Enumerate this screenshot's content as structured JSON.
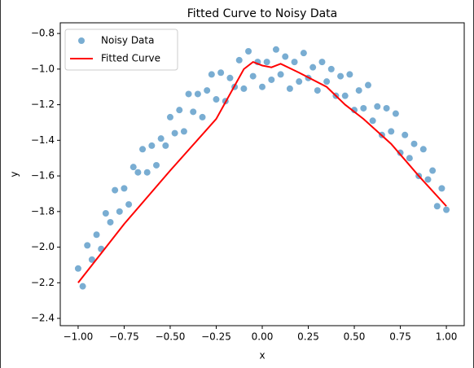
{
  "chart_data": {
    "type": "scatter_line",
    "title": "Fitted Curve to Noisy Data",
    "xlabel": "x",
    "ylabel": "y",
    "xlim": [
      -1.097,
      1.097
    ],
    "ylim": [
      -2.441,
      -0.74
    ],
    "xticks": [
      {
        "value": -1.0,
        "label": "−1.00"
      },
      {
        "value": -0.75,
        "label": "−0.75"
      },
      {
        "value": -0.5,
        "label": "−0.50"
      },
      {
        "value": -0.25,
        "label": "−0.25"
      },
      {
        "value": 0,
        "label": "0.00"
      },
      {
        "value": 0.25,
        "label": "0.25"
      },
      {
        "value": 0.5,
        "label": "0.50"
      },
      {
        "value": 0.75,
        "label": "0.75"
      },
      {
        "value": 1.0,
        "label": "1.00"
      }
    ],
    "yticks": [
      {
        "value": -2.4,
        "label": "−2.4"
      },
      {
        "value": -2.2,
        "label": "−2.2"
      },
      {
        "value": -2.0,
        "label": "−2.0"
      },
      {
        "value": -1.8,
        "label": "−1.8"
      },
      {
        "value": -1.6,
        "label": "−1.6"
      },
      {
        "value": -1.4,
        "label": "−1.4"
      },
      {
        "value": -1.2,
        "label": "−1.2"
      },
      {
        "value": -1.0,
        "label": "−1.0"
      },
      {
        "value": -0.8,
        "label": "−0.8"
      }
    ],
    "legend": "upper left",
    "series": [
      {
        "name": "Noisy Data",
        "kind": "scatter",
        "color": "#1f77b4",
        "x": [
          -1,
          -0.975,
          -0.95,
          -0.925,
          -0.9,
          -0.875,
          -0.85,
          -0.825,
          -0.8,
          -0.775,
          -0.75,
          -0.725,
          -0.7,
          -0.675,
          -0.65,
          -0.625,
          -0.6,
          -0.575,
          -0.55,
          -0.525,
          -0.5,
          -0.475,
          -0.45,
          -0.425,
          -0.4,
          -0.375,
          -0.35,
          -0.325,
          -0.3,
          -0.275,
          -0.25,
          -0.225,
          -0.2,
          -0.175,
          -0.15,
          -0.125,
          -0.1,
          -0.075,
          -0.05,
          -0.025,
          0,
          0.025,
          0.05,
          0.075,
          0.1,
          0.125,
          0.15,
          0.175,
          0.2,
          0.225,
          0.25,
          0.275,
          0.3,
          0.325,
          0.35,
          0.375,
          0.4,
          0.425,
          0.45,
          0.475,
          0.5,
          0.525,
          0.55,
          0.575,
          0.6,
          0.625,
          0.65,
          0.675,
          0.7,
          0.725,
          0.75,
          0.775,
          0.8,
          0.825,
          0.85,
          0.875,
          0.9,
          0.925,
          0.95,
          0.975,
          1
        ],
        "values": [
          -2.12,
          -2.22,
          -1.99,
          -2.07,
          -1.93,
          -2.01,
          -1.81,
          -1.86,
          -1.68,
          -1.8,
          -1.67,
          -1.76,
          -1.55,
          -1.58,
          -1.45,
          -1.58,
          -1.43,
          -1.54,
          -1.39,
          -1.43,
          -1.27,
          -1.36,
          -1.23,
          -1.35,
          -1.14,
          -1.24,
          -1.14,
          -1.27,
          -1.12,
          -1.03,
          -1.17,
          -1.02,
          -1.18,
          -1.05,
          -1.1,
          -0.95,
          -1.11,
          -0.9,
          -1.04,
          -0.96,
          -1.1,
          -0.96,
          -1.06,
          -0.89,
          -1.03,
          -0.93,
          -1.11,
          -0.96,
          -1.07,
          -0.91,
          -1.05,
          -0.99,
          -1.12,
          -0.96,
          -1.07,
          -1.0,
          -1.15,
          -1.04,
          -1.15,
          -1.03,
          -1.23,
          -1.12,
          -1.22,
          -1.09,
          -1.29,
          -1.21,
          -1.37,
          -1.22,
          -1.35,
          -1.25,
          -1.47,
          -1.37,
          -1.5,
          -1.42,
          -1.6,
          -1.45,
          -1.62,
          -1.57,
          -1.77,
          -1.67,
          -1.79
        ]
      },
      {
        "name": "Fitted Curve",
        "kind": "line",
        "color": "#ff0000",
        "x": [
          -1,
          -0.75,
          -0.5,
          -0.25,
          -0.1,
          -0.05,
          0,
          0.05,
          0.1,
          0.2,
          0.35,
          0.45,
          0.55,
          0.7,
          0.85,
          1
        ],
        "values": [
          -2.2,
          -1.87,
          -1.57,
          -1.28,
          -1.0,
          -0.96,
          -0.98,
          -0.99,
          -0.97,
          -1.02,
          -1.1,
          -1.2,
          -1.28,
          -1.42,
          -1.6,
          -1.77
        ]
      }
    ]
  }
}
